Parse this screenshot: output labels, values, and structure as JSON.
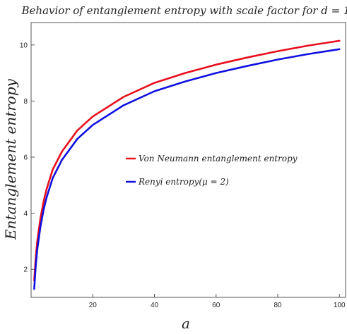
{
  "chart_data": {
    "type": "line",
    "title": "Behavior of entanglement entropy with scale factor for d = 1",
    "xlabel": "a",
    "ylabel": "Entanglement entropy",
    "xlim": [
      0,
      102
    ],
    "ylim": [
      1,
      10.8
    ],
    "xticks": [
      20,
      40,
      60,
      80,
      100
    ],
    "yticks": [
      2,
      4,
      6,
      8,
      10
    ],
    "grid": false,
    "legend_position": "center",
    "x": [
      1,
      1.5,
      2,
      3,
      4,
      5,
      7,
      10,
      15,
      20,
      30,
      40,
      50,
      60,
      70,
      80,
      90,
      100
    ],
    "series": [
      {
        "name": "Von Neumann entanglement entropy",
        "color": "#e8101e",
        "values": [
          1.6,
          2.4,
          3.0,
          3.8,
          4.4,
          4.85,
          5.55,
          6.2,
          6.95,
          7.45,
          8.15,
          8.65,
          9.0,
          9.3,
          9.55,
          9.78,
          9.98,
          10.15
        ]
      },
      {
        "name": "Renyi entropy(μ = 2)",
        "color": "#1010e0",
        "values": [
          1.3,
          2.1,
          2.7,
          3.5,
          4.1,
          4.55,
          5.25,
          5.9,
          6.65,
          7.15,
          7.85,
          8.35,
          8.7,
          9.0,
          9.25,
          9.48,
          9.68,
          9.85
        ]
      }
    ]
  }
}
